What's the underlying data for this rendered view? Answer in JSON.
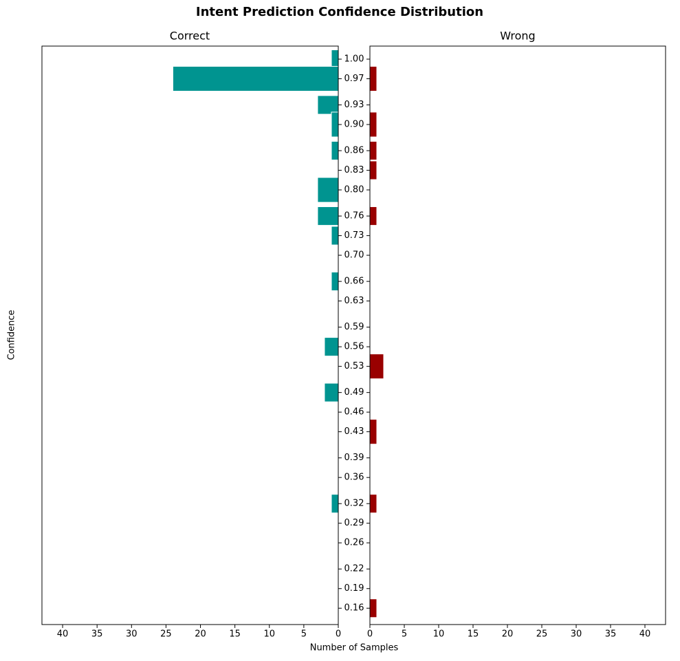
{
  "chart_data": {
    "type": "bar",
    "orientation": "horizontal",
    "title": "Intent Prediction Confidence Distribution",
    "xlabel": "Number of Samples",
    "ylabel": "Confidence",
    "y": [
      1,
      0.97,
      0.93,
      0.9,
      0.86,
      0.83,
      0.8,
      0.76,
      0.73,
      0.7,
      0.66,
      0.63,
      0.59,
      0.56,
      0.53,
      0.49,
      0.46,
      0.43,
      0.39,
      0.36,
      0.32,
      0.29,
      0.26,
      0.22,
      0.19,
      0.16
    ],
    "series": [
      {
        "name": "Correct",
        "color": "#009490",
        "values": [
          1,
          24,
          3,
          1,
          1,
          0,
          3,
          3,
          1,
          0,
          1,
          0,
          0,
          2,
          0,
          2,
          0,
          0,
          0,
          0,
          1,
          0,
          0,
          0,
          0,
          0
        ]
      },
      {
        "name": "Wrong",
        "color": "#990000",
        "values": [
          0,
          1,
          0,
          1,
          1,
          1,
          0,
          1,
          0,
          0,
          0,
          0,
          0,
          0,
          2,
          0,
          0,
          1,
          0,
          0,
          1,
          0,
          0,
          0,
          0,
          1
        ]
      }
    ],
    "xlim": [
      0,
      43
    ],
    "xticks": [
      0,
      5,
      10,
      15,
      20,
      25,
      30,
      35,
      40
    ],
    "ylim": [
      0.135,
      1.02
    ],
    "yticks": [
      {
        "value": 1,
        "label": "1.00"
      },
      0.97,
      0.93,
      {
        "value": 0.9,
        "label": "0.90"
      },
      0.86,
      0.83,
      {
        "value": 0.8,
        "label": "0.80"
      },
      0.76,
      0.73,
      {
        "value": 0.7,
        "label": "0.70"
      },
      0.66,
      0.63,
      0.59,
      0.56,
      0.53,
      0.49,
      0.46,
      0.43,
      0.39,
      0.36,
      0.32,
      0.29,
      0.26,
      0.22,
      0.19,
      0.16
    ]
  }
}
